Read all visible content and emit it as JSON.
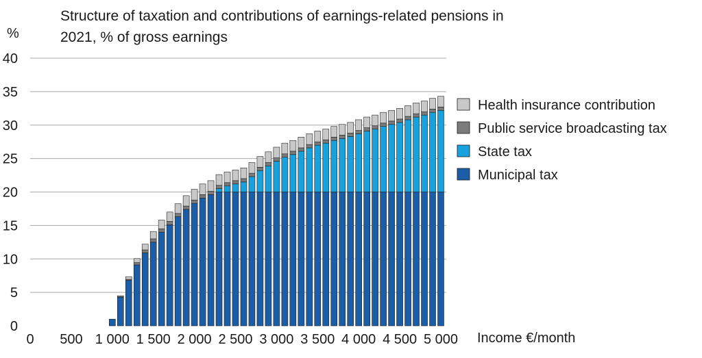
{
  "chart_data": {
    "type": "bar",
    "stacked": true,
    "title_lines": [
      "Structure of taxation and contributions of earnings-related pensions in",
      "2021, % of gross earnings"
    ],
    "ylabel": "%",
    "xlabel": "Income €/month",
    "ylim": [
      0,
      40
    ],
    "xlim": [
      0,
      5000
    ],
    "y_ticks": [
      "0",
      "5",
      "10",
      "15",
      "20",
      "25",
      "30",
      "35",
      "40"
    ],
    "x_ticks": [
      "0",
      "500",
      "1 000",
      "1 500",
      "2 000",
      "2 500",
      "3 000",
      "3 500",
      "4 000",
      "4 500",
      "5 000"
    ],
    "grid": true,
    "legend_position": "right",
    "x": [
      1000,
      1100,
      1200,
      1300,
      1400,
      1500,
      1600,
      1700,
      1800,
      1900,
      2000,
      2100,
      2200,
      2300,
      2400,
      2500,
      2600,
      2700,
      2800,
      2900,
      3000,
      3100,
      3200,
      3300,
      3400,
      3500,
      3600,
      3700,
      3800,
      3900,
      4000,
      4100,
      4200,
      4300,
      4400,
      4500,
      4600,
      4700,
      4800,
      4900,
      5000
    ],
    "series": [
      {
        "name": "Municipal tax",
        "color": "#1a5ea8",
        "values": [
          1.0,
          4.3,
          6.8,
          9.1,
          10.9,
          12.5,
          14.0,
          15.1,
          16.3,
          17.4,
          18.3,
          19.1,
          19.6,
          20.0,
          20.0,
          20.0,
          20.0,
          20.0,
          20.0,
          20.0,
          20.0,
          20.0,
          20.0,
          20.0,
          20.0,
          20.0,
          20.0,
          20.0,
          20.0,
          20.0,
          20.0,
          20.0,
          20.0,
          20.0,
          20.0,
          20.0,
          20.0,
          20.0,
          20.0,
          20.0,
          20.0
        ]
      },
      {
        "name": "State tax",
        "color": "#17a2de",
        "values": [
          0,
          0,
          0,
          0,
          0,
          0,
          0,
          0,
          0,
          0,
          0,
          0,
          0,
          0.5,
          0.9,
          1.2,
          1.5,
          2.3,
          3.2,
          3.9,
          4.6,
          5.2,
          5.6,
          6.1,
          6.6,
          7.0,
          7.3,
          7.7,
          8.0,
          8.3,
          8.7,
          9.1,
          9.4,
          9.8,
          10.1,
          10.4,
          10.8,
          11.2,
          11.5,
          11.9,
          12.2
        ]
      },
      {
        "name": "Public service broadcasting tax",
        "color": "#7b7b7b",
        "values": [
          0,
          0.05,
          0.15,
          0.35,
          0.45,
          0.5,
          0.5,
          0.5,
          0.5,
          0.5,
          0.5,
          0.5,
          0.5,
          0.5,
          0.5,
          0.5,
          0.5,
          0.5,
          0.5,
          0.5,
          0.5,
          0.5,
          0.5,
          0.5,
          0.5,
          0.5,
          0.5,
          0.5,
          0.5,
          0.5,
          0.5,
          0.5,
          0.5,
          0.5,
          0.5,
          0.5,
          0.5,
          0.5,
          0.5,
          0.5,
          0.5
        ]
      },
      {
        "name": "Health insurance contribution",
        "color": "#c8c8c8",
        "values": [
          0,
          0.15,
          0.4,
          0.6,
          0.85,
          1.1,
          1.3,
          1.4,
          1.45,
          1.55,
          1.6,
          1.6,
          1.6,
          1.6,
          1.6,
          1.6,
          1.6,
          1.6,
          1.6,
          1.6,
          1.6,
          1.6,
          1.6,
          1.6,
          1.6,
          1.6,
          1.6,
          1.6,
          1.6,
          1.6,
          1.6,
          1.6,
          1.6,
          1.6,
          1.6,
          1.6,
          1.6,
          1.6,
          1.6,
          1.6,
          1.6
        ]
      }
    ],
    "legend_order": [
      "Health insurance contribution",
      "Public service broadcasting tax",
      "State tax",
      "Municipal tax"
    ]
  }
}
